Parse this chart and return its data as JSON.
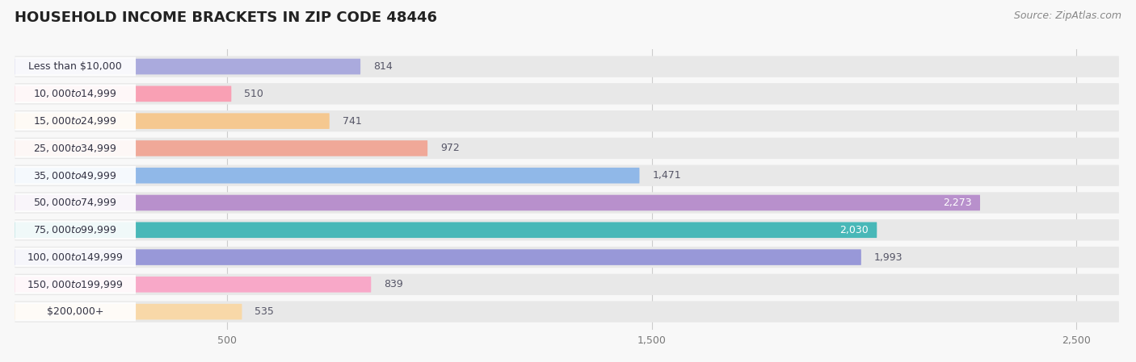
{
  "title": "HOUSEHOLD INCOME BRACKETS IN ZIP CODE 48446",
  "source": "Source: ZipAtlas.com",
  "categories": [
    "Less than $10,000",
    "$10,000 to $14,999",
    "$15,000 to $24,999",
    "$25,000 to $34,999",
    "$35,000 to $49,999",
    "$50,000 to $74,999",
    "$75,000 to $99,999",
    "$100,000 to $149,999",
    "$150,000 to $199,999",
    "$200,000+"
  ],
  "values": [
    814,
    510,
    741,
    972,
    1471,
    2273,
    2030,
    1993,
    839,
    535
  ],
  "colors": [
    "#aaaadd",
    "#f9a0b4",
    "#f5c890",
    "#f0a898",
    "#90b8e8",
    "#b890cc",
    "#48b8b8",
    "#9898d8",
    "#f8a8c8",
    "#f8d8a8"
  ],
  "bg_color": "#f8f8f8",
  "bar_bg_color": "#e8e8e8",
  "xlim_data": [
    0,
    2600
  ],
  "data_max": 2600,
  "label_inside_threshold": 2000,
  "title_fontsize": 13,
  "source_fontsize": 9,
  "bar_label_fontsize": 9,
  "category_fontsize": 9,
  "xtick_vals": [
    500,
    1500,
    2500
  ],
  "xtick_labels": [
    "500",
    "1,500",
    "2,500"
  ]
}
